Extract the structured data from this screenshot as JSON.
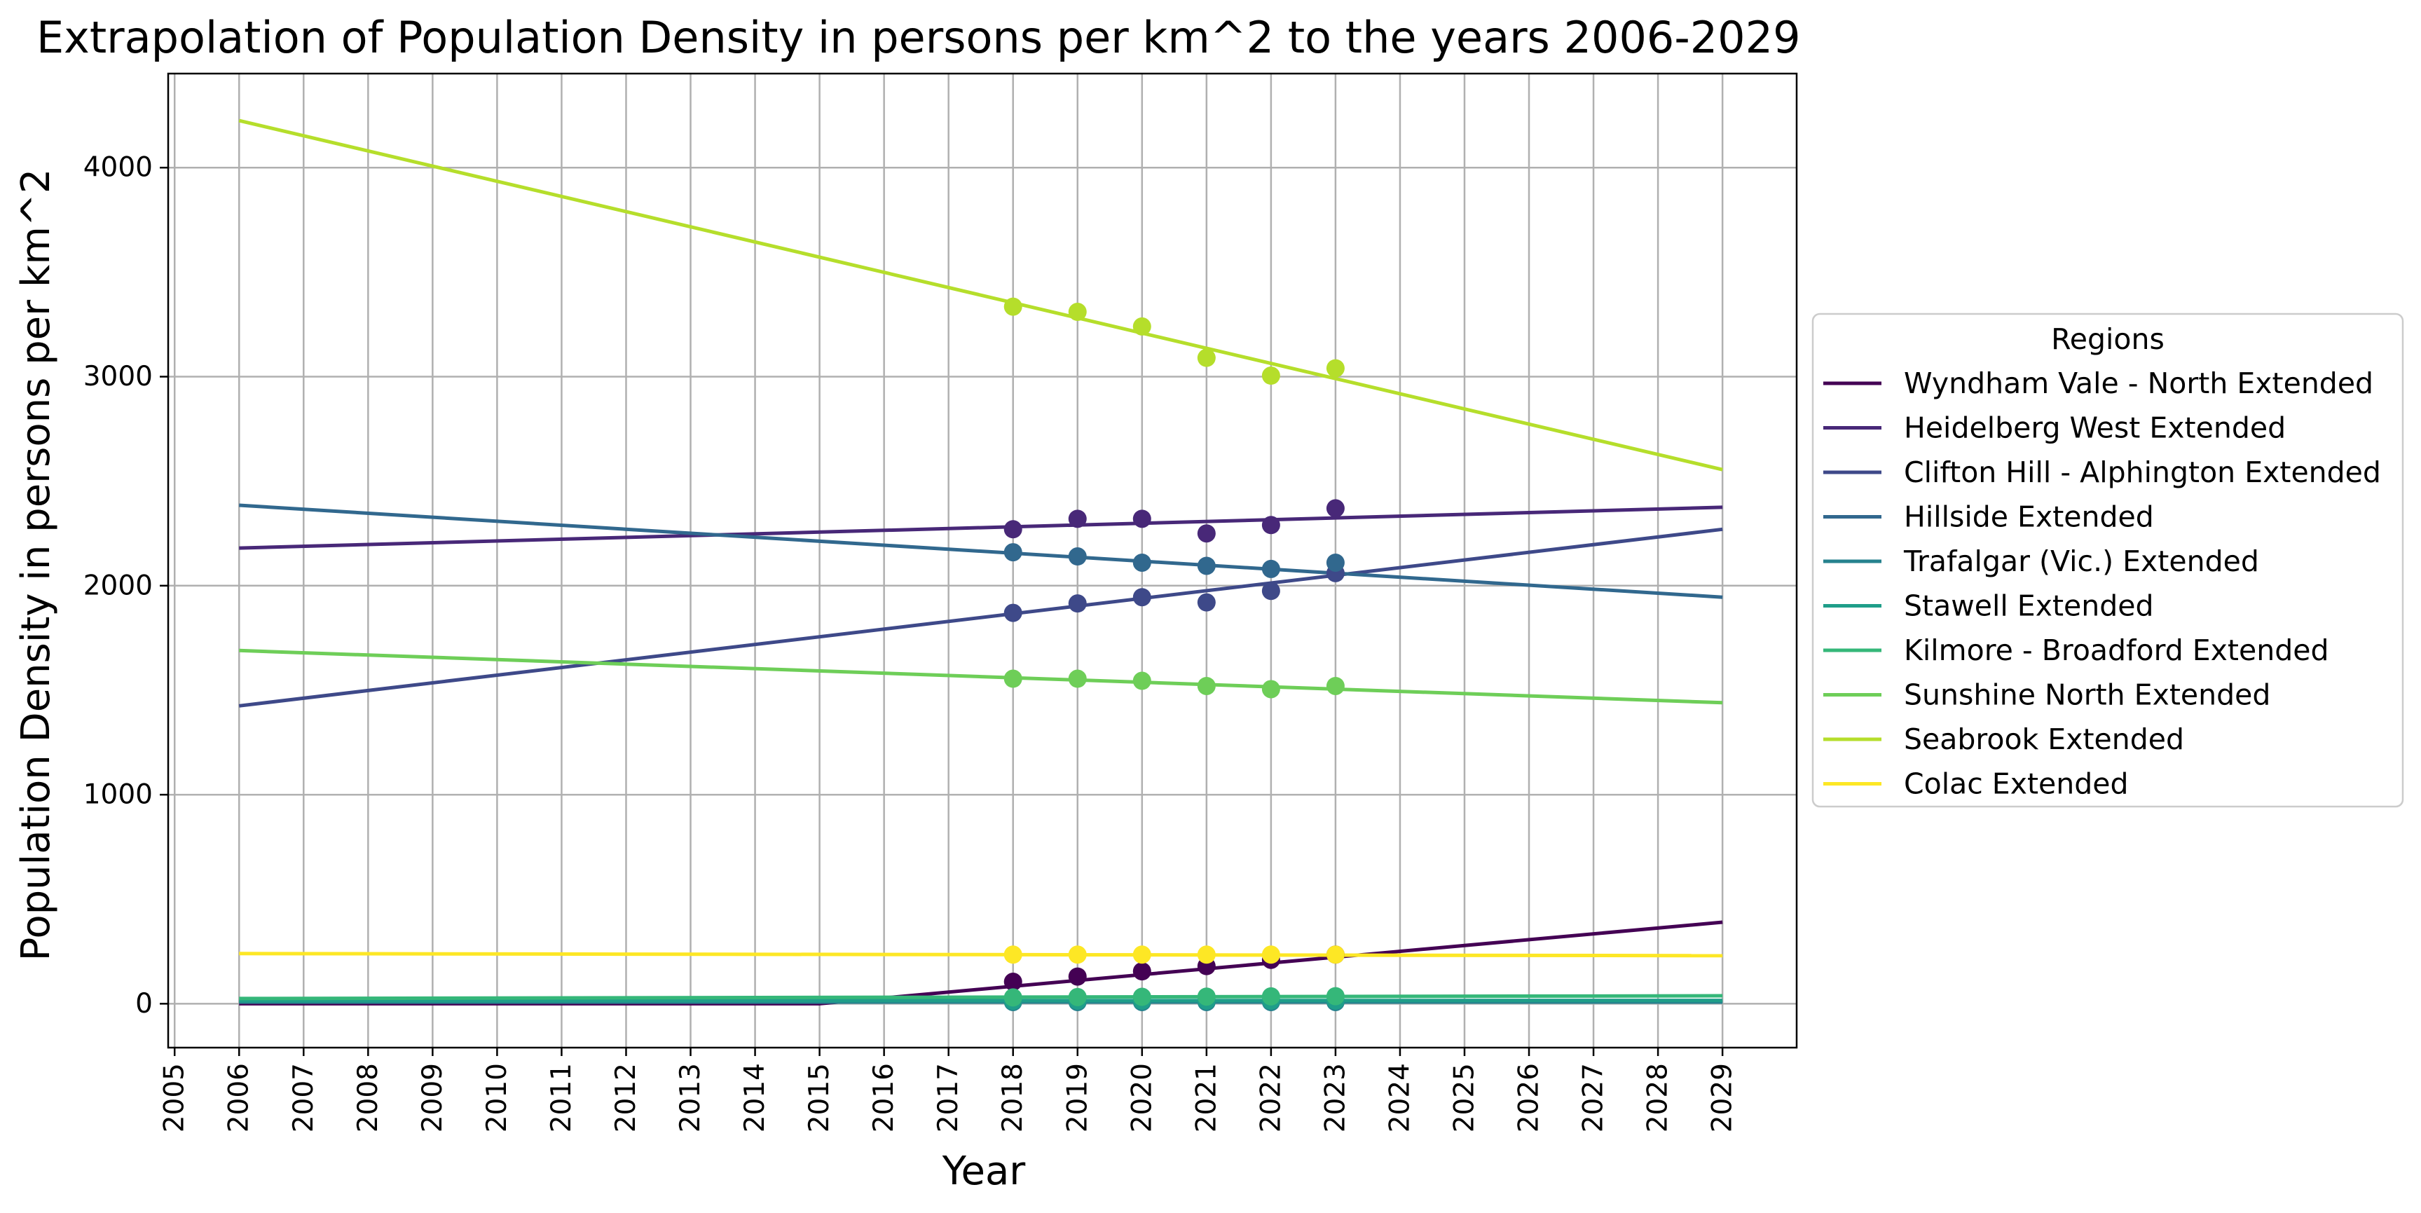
{
  "chart_data": {
    "type": "line",
    "title": "Extrapolation of Population Density in persons per km^2 to the years 2006-2029",
    "xlabel": "Year",
    "ylabel": "Population Density in persons per km^2",
    "xlim": [
      2004.9,
      2030.15
    ],
    "ylim": [
      -210,
      4450
    ],
    "x_ticks": [
      2005,
      2006,
      2007,
      2008,
      2009,
      2010,
      2011,
      2012,
      2013,
      2014,
      2015,
      2016,
      2017,
      2018,
      2019,
      2020,
      2021,
      2022,
      2023,
      2024,
      2025,
      2026,
      2027,
      2028,
      2029
    ],
    "y_ticks": [
      0,
      1000,
      2000,
      3000,
      4000
    ],
    "grid": true,
    "legend": {
      "title": "Regions",
      "placement": "outside right"
    },
    "observed_years": [
      2018,
      2019,
      2020,
      2021,
      2022,
      2023
    ],
    "series": [
      {
        "name": "Wyndham Vale - North Extended",
        "color": "#440154",
        "line": [
          [
            2006,
            0
          ],
          [
            2015,
            0
          ],
          [
            2029,
            390
          ]
        ],
        "points": [
          105,
          130,
          155,
          180,
          210,
          235
        ]
      },
      {
        "name": "Heidelberg West Extended",
        "color": "#482878",
        "line": [
          [
            2006,
            2180
          ],
          [
            2029,
            2375
          ]
        ],
        "points": [
          2270,
          2320,
          2320,
          2250,
          2290,
          2370
        ]
      },
      {
        "name": "Clifton Hill - Alphington Extended",
        "color": "#3e4989",
        "line": [
          [
            2006,
            1425
          ],
          [
            2029,
            2270
          ]
        ],
        "points": [
          1870,
          1915,
          1945,
          1920,
          1975,
          2060
        ]
      },
      {
        "name": "Hillside Extended",
        "color": "#31688e",
        "line": [
          [
            2006,
            2385
          ],
          [
            2029,
            1945
          ]
        ],
        "points": [
          2160,
          2140,
          2110,
          2095,
          2080,
          2110
        ]
      },
      {
        "name": "Trafalgar (Vic.) Extended",
        "color": "#26828e",
        "line": [
          [
            2006,
            8
          ],
          [
            2029,
            8
          ]
        ],
        "points": [
          8,
          8,
          8,
          8,
          8,
          8
        ]
      },
      {
        "name": "Stawell Extended",
        "color": "#1f9e89",
        "line": [
          [
            2006,
            14
          ],
          [
            2029,
            16
          ]
        ],
        "points": [
          14,
          15,
          15,
          15,
          15,
          15
        ]
      },
      {
        "name": "Kilmore - Broadford Extended",
        "color": "#35b779",
        "line": [
          [
            2006,
            25
          ],
          [
            2029,
            38
          ]
        ],
        "points": [
          30,
          32,
          33,
          34,
          35,
          36
        ]
      },
      {
        "name": "Sunshine North Extended",
        "color": "#6ece58",
        "line": [
          [
            2006,
            1690
          ],
          [
            2029,
            1440
          ]
        ],
        "points": [
          1555,
          1555,
          1545,
          1520,
          1505,
          1520
        ]
      },
      {
        "name": "Seabrook Extended",
        "color": "#b5de2b",
        "line": [
          [
            2006,
            4225
          ],
          [
            2029,
            2555
          ]
        ],
        "points": [
          3335,
          3310,
          3240,
          3090,
          3005,
          3040
        ]
      },
      {
        "name": "Colac Extended",
        "color": "#fde725",
        "line": [
          [
            2006,
            240
          ],
          [
            2029,
            230
          ]
        ],
        "points": [
          235,
          235,
          235,
          235,
          235,
          235
        ]
      }
    ]
  }
}
